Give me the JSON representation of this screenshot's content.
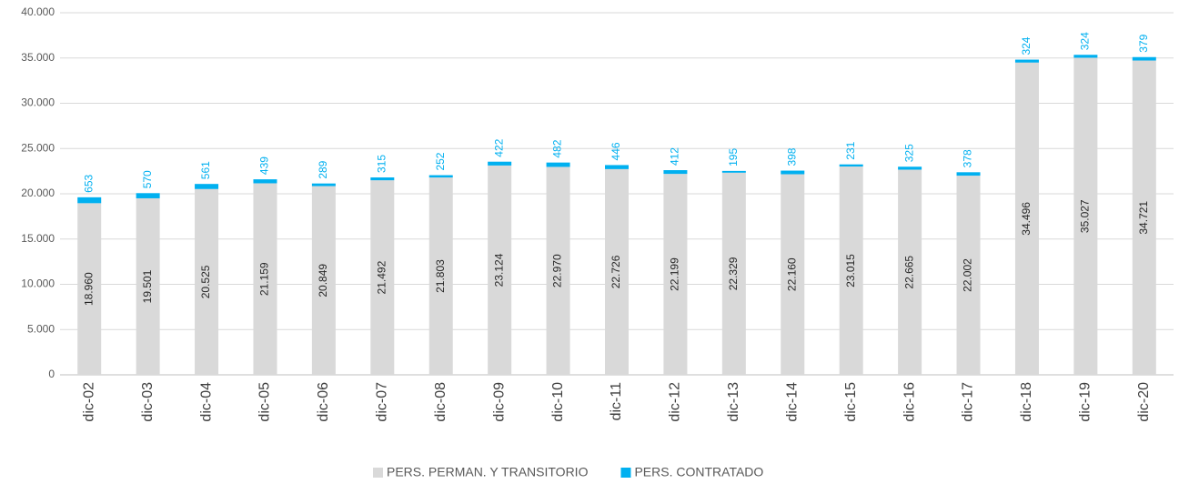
{
  "chart_data": {
    "type": "stacked_bar",
    "categories": [
      "dic-02",
      "dic-03",
      "dic-04",
      "dic-05",
      "dic-06",
      "dic-07",
      "dic-08",
      "dic-09",
      "dic-10",
      "dic-11",
      "dic-12",
      "dic-13",
      "dic-14",
      "dic-15",
      "dic-16",
      "dic-17",
      "dic-18",
      "dic-19",
      "dic-20"
    ],
    "series": [
      {
        "name": "PERS. PERMAN. Y TRANSITORIO",
        "color": "#d9d9d9",
        "values": [
          18960,
          19501,
          20525,
          21159,
          20849,
          21492,
          21803,
          23124,
          22970,
          22726,
          22199,
          22329,
          22160,
          23015,
          22665,
          22002,
          34496,
          35027,
          34721
        ],
        "value_labels": [
          "18.960",
          "19.501",
          "20.525",
          "21.159",
          "20.849",
          "21.492",
          "21.803",
          "23.124",
          "22.970",
          "22.726",
          "22.199",
          "22.329",
          "22.160",
          "23.015",
          "22.665",
          "22.002",
          "34.496",
          "35.027",
          "34.721"
        ]
      },
      {
        "name": "PERS. CONTRATADO",
        "color": "#00b0f0",
        "values": [
          653,
          570,
          561,
          439,
          289,
          315,
          252,
          422,
          482,
          446,
          412,
          195,
          398,
          231,
          325,
          378,
          324,
          324,
          379
        ]
      }
    ],
    "ylim": [
      0,
      40000
    ],
    "yticks": [
      0,
      {
        "value": 5000,
        "label": "5.000"
      },
      {
        "value": 10000,
        "label": "10.000"
      },
      {
        "value": 15000,
        "label": "15.000"
      },
      {
        "value": 20000,
        "label": "20.000"
      },
      {
        "value": 25000,
        "label": "25.000"
      },
      {
        "value": 30000,
        "label": "30.000"
      },
      {
        "value": 35000,
        "label": "35.000"
      },
      {
        "value": 40000,
        "label": "40.000"
      }
    ],
    "grid": true,
    "legend": "bottom"
  }
}
